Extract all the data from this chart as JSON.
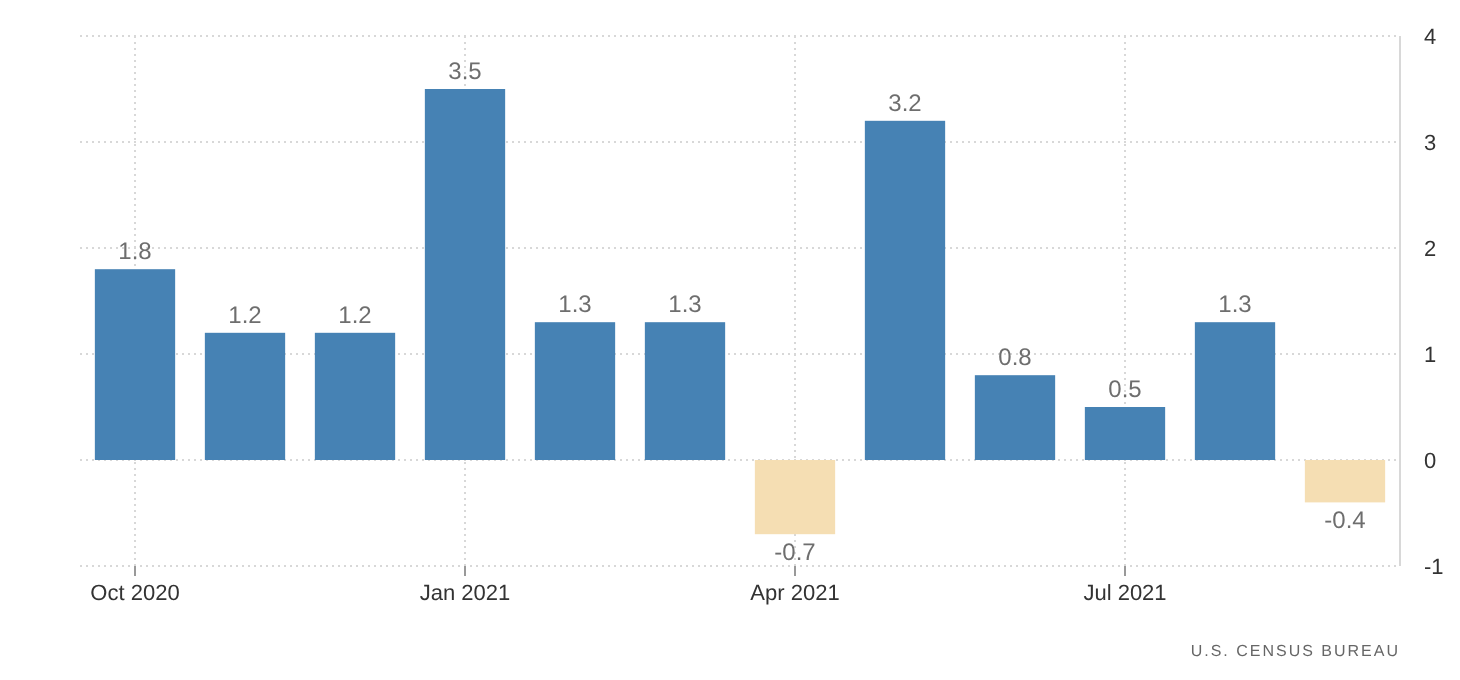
{
  "chart_data": {
    "type": "bar",
    "categories": [
      "Oct 2020",
      null,
      null,
      "Jan 2021",
      null,
      null,
      "Apr 2021",
      null,
      null,
      "Jul 2021",
      null,
      null
    ],
    "values": [
      1.8,
      1.2,
      1.2,
      3.5,
      1.3,
      1.3,
      -0.7,
      3.2,
      0.8,
      0.5,
      1.3,
      -0.4
    ],
    "colors": [
      "#4682b4",
      "#4682b4",
      "#4682b4",
      "#4682b4",
      "#4682b4",
      "#4682b4",
      "#f5deb3",
      "#4682b4",
      "#4682b4",
      "#4682b4",
      "#4682b4",
      "#f5deb3"
    ],
    "ylim": [
      -1,
      4
    ],
    "yticks": [
      -1,
      0,
      1,
      2,
      3,
      4
    ],
    "grid": true,
    "data_labels": true,
    "annotations": [
      "U.S. CENSUS BUREAU"
    ]
  }
}
